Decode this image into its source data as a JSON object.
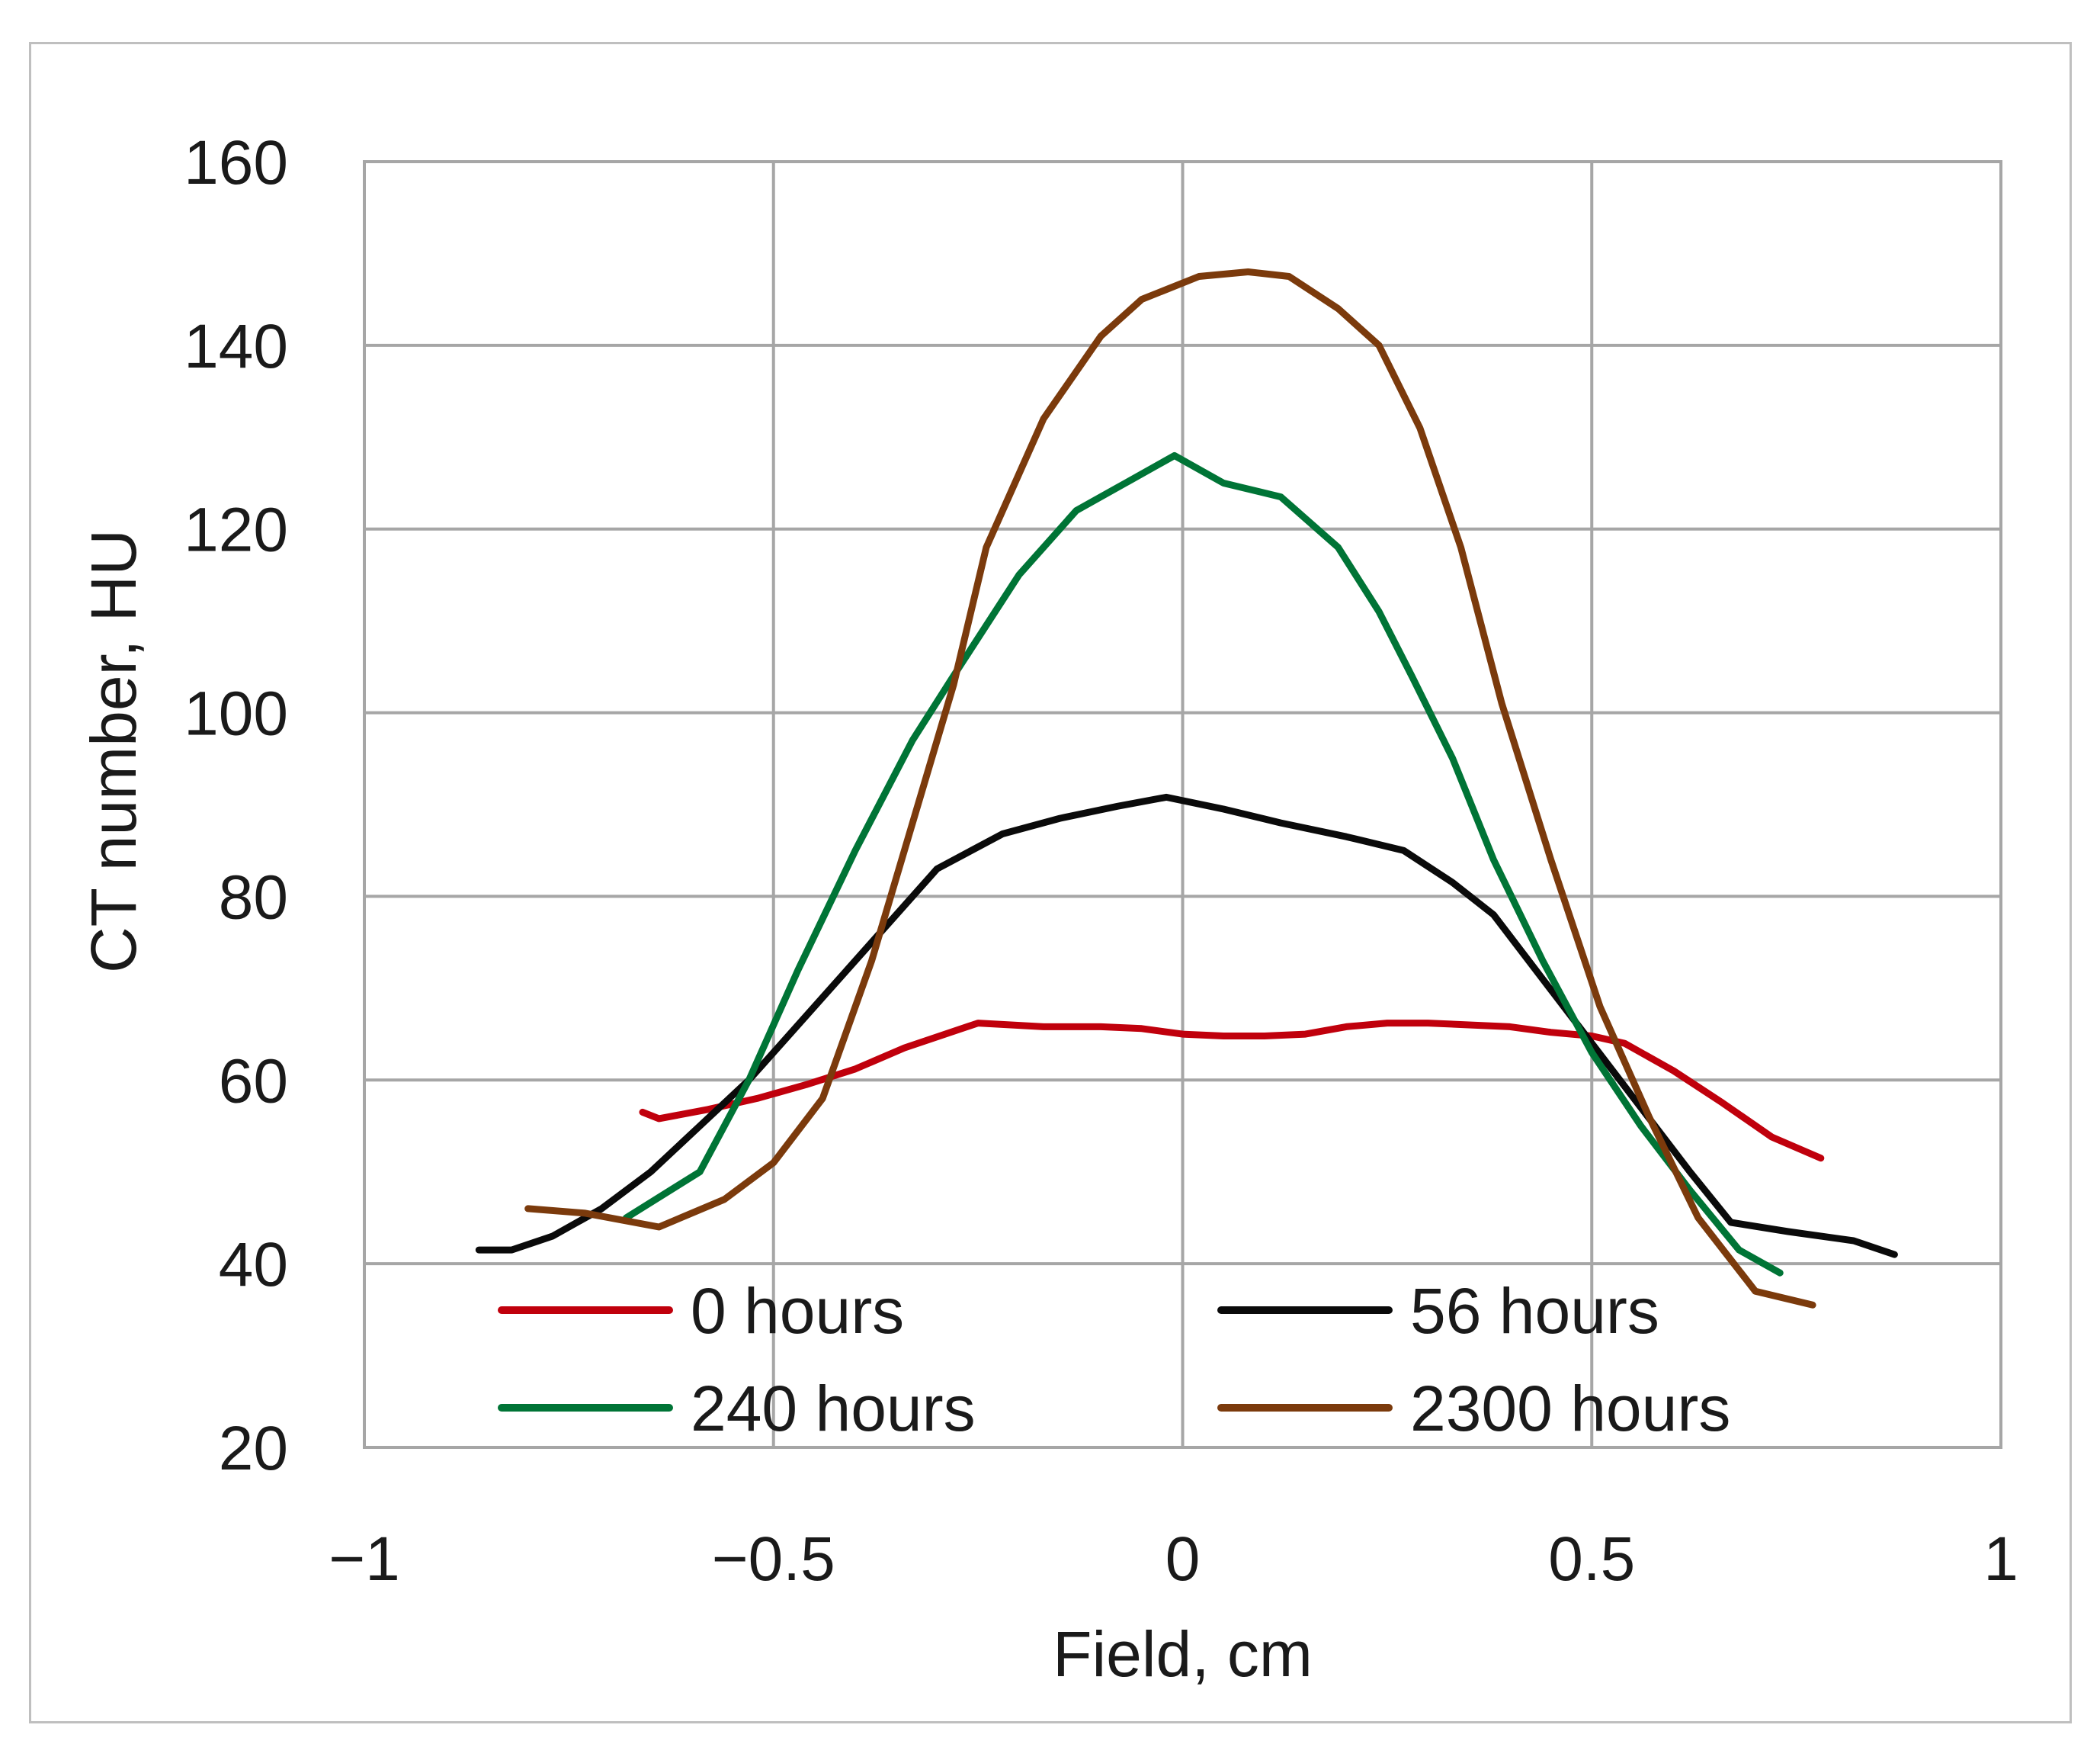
{
  "chart_data": {
    "type": "line",
    "title": "",
    "xlabel": "Field, cm",
    "ylabel": "CT number, HU",
    "xlim": [
      -1,
      1
    ],
    "ylim": [
      20,
      160
    ],
    "xticks": [
      -1,
      -0.5,
      0,
      0.5,
      1
    ],
    "xtick_labels": [
      "−1",
      "−0.5",
      "0",
      "0.5",
      "1"
    ],
    "yticks": [
      20,
      40,
      60,
      80,
      100,
      120,
      140,
      160
    ],
    "ytick_labels": [
      "20",
      "40",
      "60",
      "80",
      "100",
      "120",
      "140",
      "160"
    ],
    "grid": true,
    "legend_position": "bottom-inside, two columns",
    "series": [
      {
        "name": "0 hours",
        "color": "#c0000c",
        "x": [
          -0.66,
          -0.64,
          -0.58,
          -0.52,
          -0.46,
          -0.4,
          -0.34,
          -0.25,
          -0.17,
          -0.1,
          -0.05,
          0.0,
          0.05,
          0.1,
          0.15,
          0.2,
          0.25,
          0.3,
          0.35,
          0.4,
          0.45,
          0.5,
          0.54,
          0.6,
          0.66,
          0.72,
          0.78
        ],
        "values": [
          56.5,
          55.8,
          56.8,
          58.0,
          59.5,
          61.2,
          63.5,
          66.2,
          65.8,
          65.8,
          65.6,
          65.0,
          64.8,
          64.8,
          65.0,
          65.8,
          66.2,
          66.2,
          66.0,
          65.8,
          65.2,
          64.8,
          64.0,
          61.0,
          57.5,
          53.8,
          51.5
        ]
      },
      {
        "name": "56 hours",
        "color": "#0a0a0a",
        "x": [
          -0.86,
          -0.82,
          -0.77,
          -0.71,
          -0.65,
          -0.59,
          -0.53,
          -0.47,
          -0.41,
          -0.35,
          -0.3,
          -0.22,
          -0.15,
          -0.08,
          -0.02,
          0.05,
          0.12,
          0.2,
          0.27,
          0.33,
          0.38,
          0.44,
          0.5,
          0.56,
          0.62,
          0.67,
          0.74,
          0.82,
          0.87
        ],
        "values": [
          41.5,
          41.5,
          43.0,
          46.0,
          50.0,
          55.0,
          60.0,
          66.0,
          72.0,
          78.0,
          83.0,
          86.8,
          88.5,
          89.8,
          90.8,
          89.5,
          88.0,
          86.5,
          85.0,
          81.5,
          78.0,
          71.0,
          64.0,
          57.0,
          50.0,
          44.5,
          43.5,
          42.5,
          41.0
        ]
      },
      {
        "name": "240 hours",
        "color": "#007436",
        "x": [
          -0.68,
          -0.59,
          -0.53,
          -0.47,
          -0.4,
          -0.33,
          -0.28,
          -0.2,
          -0.13,
          -0.07,
          -0.01,
          0.05,
          0.12,
          0.19,
          0.24,
          0.28,
          0.33,
          0.38,
          0.44,
          0.5,
          0.56,
          0.62,
          0.68,
          0.73
        ],
        "values": [
          45.0,
          50.0,
          60.0,
          72.0,
          85.0,
          97.0,
          104.0,
          115.0,
          122.0,
          125.0,
          128.0,
          125.0,
          123.5,
          118.0,
          111.0,
          104.0,
          95.0,
          84.0,
          73.0,
          63.0,
          55.0,
          48.0,
          41.5,
          39.0
        ]
      },
      {
        "name": "2300 hours",
        "color": "#7b3a0c",
        "x": [
          -0.8,
          -0.73,
          -0.64,
          -0.56,
          -0.5,
          -0.44,
          -0.38,
          -0.33,
          -0.28,
          -0.24,
          -0.17,
          -0.1,
          -0.05,
          0.02,
          0.08,
          0.13,
          0.19,
          0.24,
          0.29,
          0.34,
          0.39,
          0.45,
          0.51,
          0.57,
          0.63,
          0.7,
          0.77
        ],
        "values": [
          46.0,
          45.5,
          44.0,
          47.0,
          51.0,
          58.0,
          73.0,
          88.0,
          103.0,
          118.0,
          132.0,
          141.0,
          145.0,
          147.5,
          148.0,
          147.5,
          144.0,
          140.0,
          131.0,
          118.0,
          101.0,
          84.0,
          68.0,
          56.0,
          45.0,
          37.0,
          35.5
        ]
      }
    ]
  }
}
